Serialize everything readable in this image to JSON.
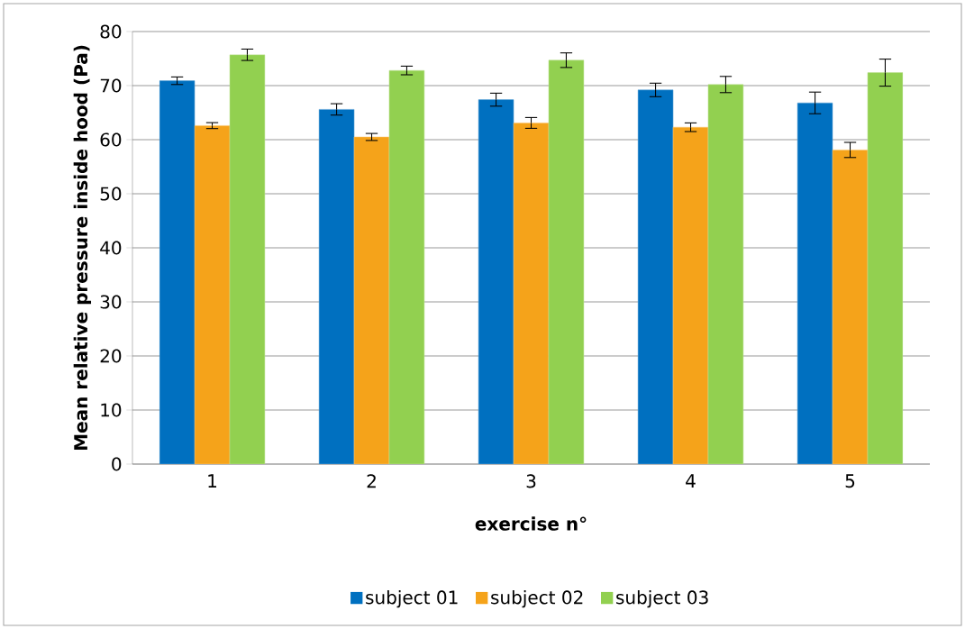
{
  "chart_data": {
    "type": "bar",
    "xlabel": "exercise n°",
    "ylabel": "Mean relative pressure inside hood (Pa)",
    "categories": [
      "1",
      "2",
      "3",
      "4",
      "5"
    ],
    "series": [
      {
        "name": "subject 01",
        "color": "#0070c0",
        "values": [
          70.9,
          65.6,
          67.4,
          69.2,
          66.8
        ],
        "errors": [
          0.7,
          1.05,
          1.2,
          1.25,
          2.0
        ]
      },
      {
        "name": "subject 02",
        "color": "#f5a31a",
        "values": [
          62.6,
          60.5,
          63.1,
          62.3,
          58.1
        ],
        "errors": [
          0.55,
          0.65,
          1.0,
          0.8,
          1.4
        ]
      },
      {
        "name": "subject 03",
        "color": "#92d050",
        "values": [
          75.7,
          72.8,
          74.7,
          70.2,
          72.4
        ],
        "errors": [
          1.05,
          0.8,
          1.35,
          1.5,
          2.5
        ]
      }
    ],
    "ylim": [
      0,
      80
    ],
    "yticks": [
      0,
      10,
      20,
      30,
      40,
      50,
      60,
      70,
      80
    ],
    "grid": "y",
    "legend": "bottom"
  }
}
